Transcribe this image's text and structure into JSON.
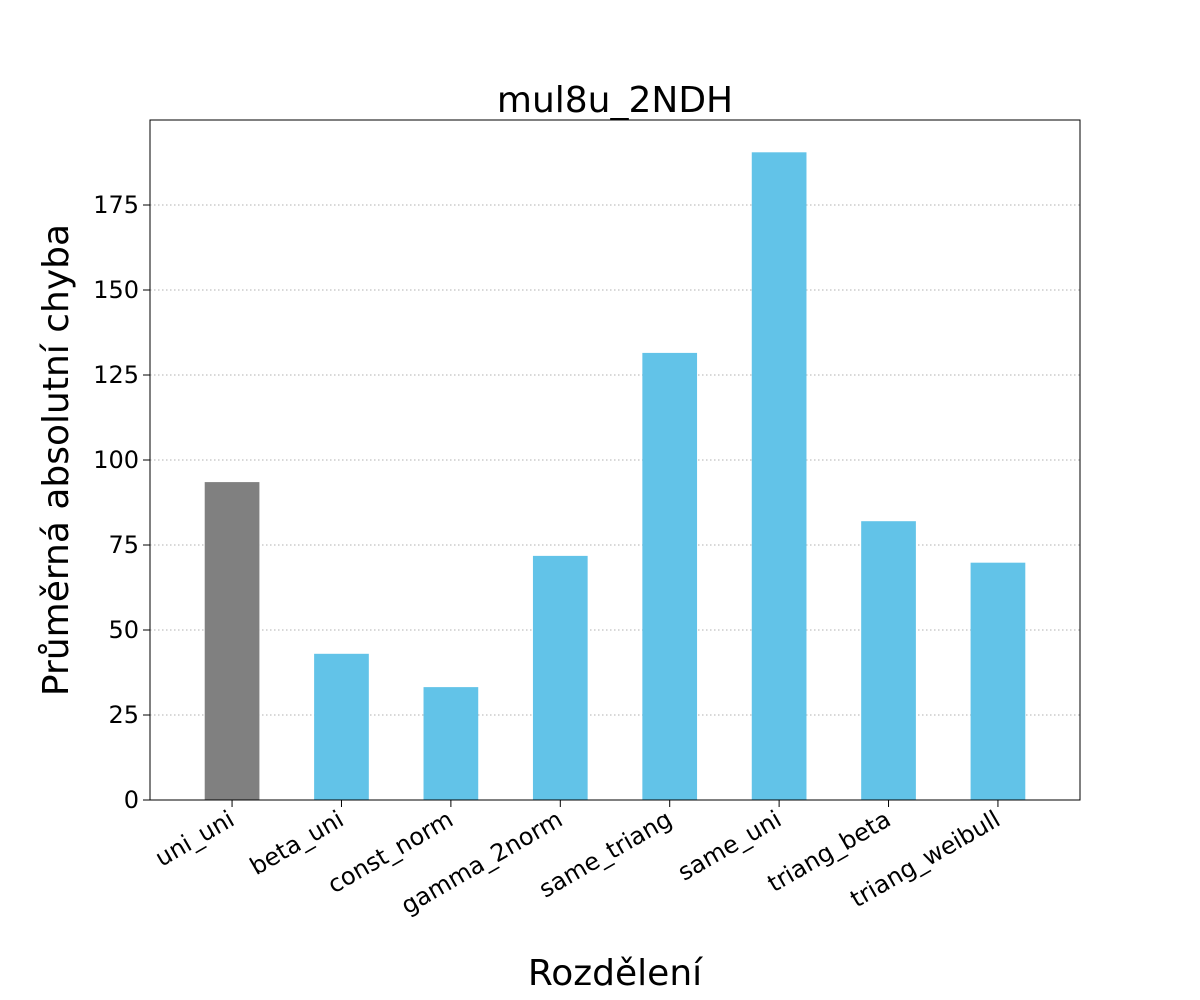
{
  "chart_data": {
    "type": "bar",
    "title": "mul8u_2NDH",
    "xlabel": "Rozdělení",
    "ylabel": "Průměrná absolutní chyba",
    "categories": [
      "uni_uni",
      "beta_uni",
      "const_norm",
      "gamma_2norm",
      "same_triang",
      "same_uni",
      "triang_beta",
      "triang_weibull"
    ],
    "values": [
      93.5,
      43,
      33.2,
      71.8,
      131.5,
      190.5,
      82,
      69.8
    ],
    "bar_colors": [
      "#808080",
      "#62c3e8",
      "#62c3e8",
      "#62c3e8",
      "#62c3e8",
      "#62c3e8",
      "#62c3e8",
      "#62c3e8"
    ],
    "ylim": [
      0,
      200
    ],
    "yticks": [
      0,
      25,
      50,
      75,
      100,
      125,
      150,
      175
    ],
    "grid": "y-dotted",
    "legend": "none"
  }
}
